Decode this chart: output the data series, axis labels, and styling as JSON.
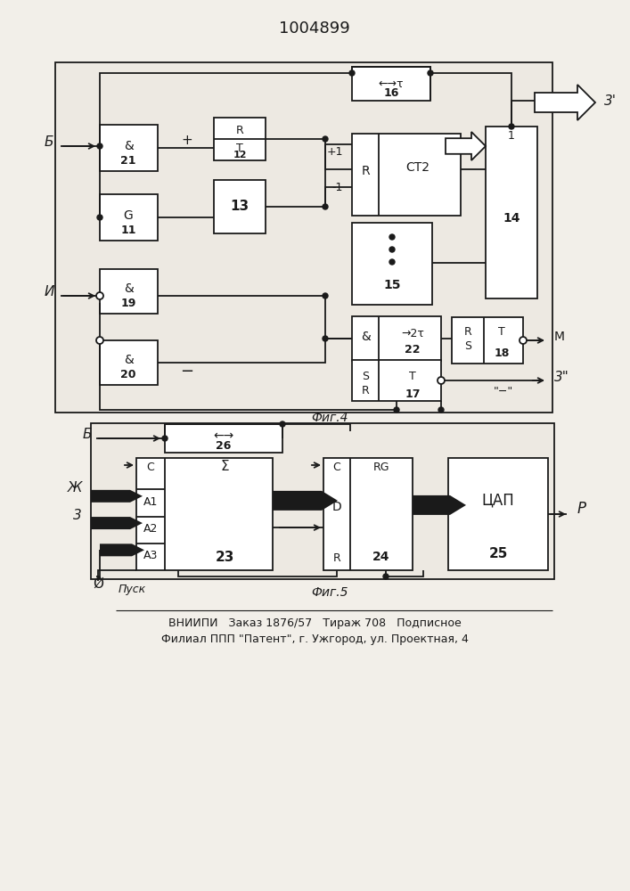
{
  "title": "1004899",
  "bg_color": "#f2efe9",
  "line_color": "#1a1a1a",
  "box_color": "#ffffff",
  "fig_width": 7.07,
  "fig_height": 10.0,
  "footer_line1": "ВНИИПИ   Заказ 1876/57   Тираж 708   Подписное",
  "footer_line2": "Филиал ППП \"Патент\", г. Ужгород, ул. Проектная, 4"
}
